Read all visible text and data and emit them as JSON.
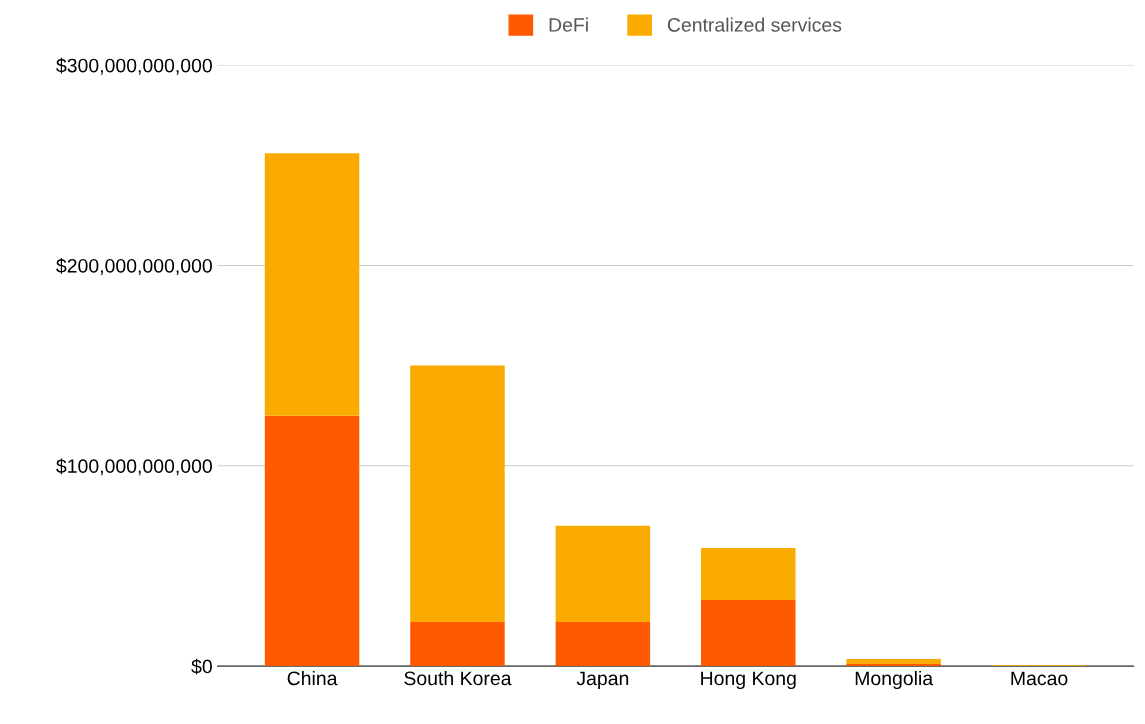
{
  "chart_data": {
    "type": "bar",
    "stacked": true,
    "categories": [
      "China",
      "South Korea",
      "Japan",
      "Hong Kong",
      "Mongolia",
      "Macao"
    ],
    "series": [
      {
        "name": "DeFi",
        "color": "#ff5a00",
        "values": [
          125000000000,
          22000000000,
          22000000000,
          33000000000,
          1000000000,
          100000000
        ]
      },
      {
        "name": "Centralized services",
        "color": "#fbab00",
        "values": [
          131000000000,
          128000000000,
          48000000000,
          26000000000,
          2500000000,
          300000000
        ]
      }
    ],
    "ylim": [
      0,
      300000000000
    ],
    "yticks": [
      {
        "value": 0,
        "label": "$0"
      },
      {
        "value": 100000000000,
        "label": "$100,000,000,000"
      },
      {
        "value": 200000000000,
        "label": "$200,000,000,000"
      },
      {
        "value": 300000000000,
        "label": "$300,000,000,000"
      }
    ],
    "grid": "y",
    "legend": "top"
  }
}
